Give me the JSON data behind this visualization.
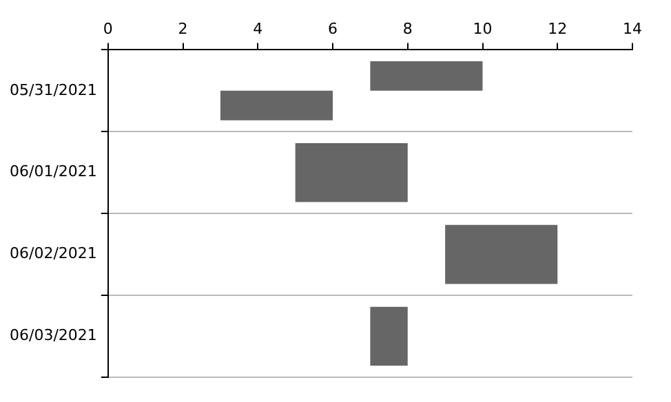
{
  "chart_data": {
    "type": "bar",
    "orientation": "horizontal",
    "categories": [
      "05/31/2021",
      "06/01/2021",
      "06/02/2021",
      "06/03/2021"
    ],
    "series": [
      {
        "color": "#666666",
        "base": [
          7,
          5,
          9,
          7
        ],
        "values": [
          3,
          3,
          3,
          1
        ]
      },
      {
        "color": "#666666",
        "base": [
          3,
          null,
          null,
          null
        ],
        "values": [
          3,
          null,
          null,
          null
        ]
      }
    ],
    "xlim": [
      0,
      14
    ],
    "xticks": [
      0,
      2,
      4,
      6,
      8,
      10,
      12,
      14
    ],
    "grid": "y",
    "legend": false
  }
}
